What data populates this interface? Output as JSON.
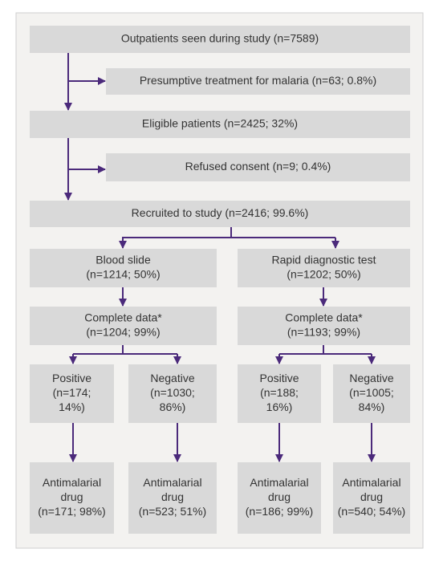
{
  "nodes": [
    {
      "lines": [
        "Outpatients seen during study (n=7589)"
      ]
    },
    {
      "lines": [
        "Presumptive treatment for malaria (n=63; 0.8%)"
      ]
    },
    {
      "lines": [
        "Eligible patients (n=2425; 32%)"
      ]
    },
    {
      "lines": [
        "Refused consent (n=9; 0.4%)"
      ]
    },
    {
      "lines": [
        "Recruited to study (n=2416; 99.6%)"
      ]
    },
    {
      "lines": [
        "Blood slide",
        "(n=1214; 50%)"
      ]
    },
    {
      "lines": [
        "Rapid diagnostic test",
        "(n=1202; 50%)"
      ]
    },
    {
      "lines": [
        "Complete data*",
        "(n=1204; 99%)"
      ]
    },
    {
      "lines": [
        "Complete data*",
        "(n=1193; 99%)"
      ]
    },
    {
      "lines": [
        "Positive",
        "(n=174;",
        "14%)"
      ]
    },
    {
      "lines": [
        "Negative",
        "(n=1030;",
        "86%)"
      ]
    },
    {
      "lines": [
        "Positive",
        "(n=188;",
        "16%)"
      ]
    },
    {
      "lines": [
        "Negative",
        "(n=1005;",
        "84%)"
      ]
    },
    {
      "lines": [
        "Antimalarial",
        "drug",
        "(n=171; 98%)"
      ]
    },
    {
      "lines": [
        "Antimalarial",
        "drug",
        "(n=523; 51%)"
      ]
    },
    {
      "lines": [
        "Antimalarial",
        "drug",
        "(n=186; 99%)"
      ]
    },
    {
      "lines": [
        "Antimalarial",
        "drug",
        "(n=540; 54%)"
      ]
    }
  ]
}
